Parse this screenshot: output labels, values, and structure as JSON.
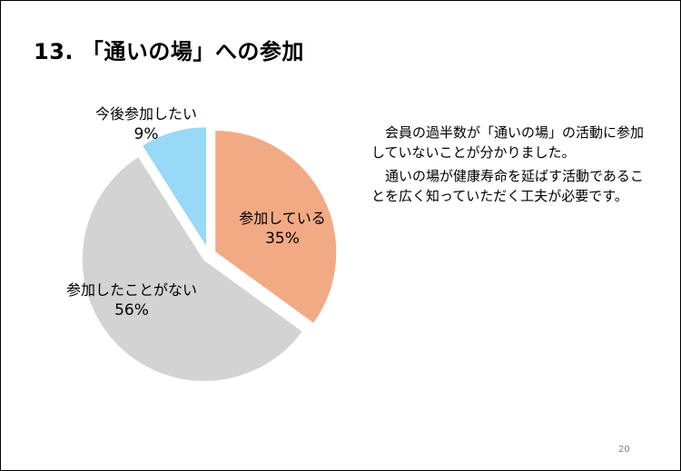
{
  "title": "13. 「通いの場」への参加",
  "chart_data": {
    "type": "pie",
    "slices": [
      {
        "label": "参加している",
        "percent_label": "35%",
        "value": 35,
        "color": "#f2aa84"
      },
      {
        "label": "参加したことがない",
        "percent_label": "56%",
        "value": 56,
        "color": "#d3d3d3"
      },
      {
        "label": "今後参加したい",
        "percent_label": "9%",
        "value": 9,
        "color": "#97d9f7"
      }
    ],
    "exploded": true
  },
  "notes": {
    "p1": "会員の過半数が「通いの場」の活動に参加していないことが分かりました。",
    "p2": "通いの場が健康寿命を延ばす活動であることを広く知っていただく工夫が必要です。"
  },
  "page_number": "20"
}
